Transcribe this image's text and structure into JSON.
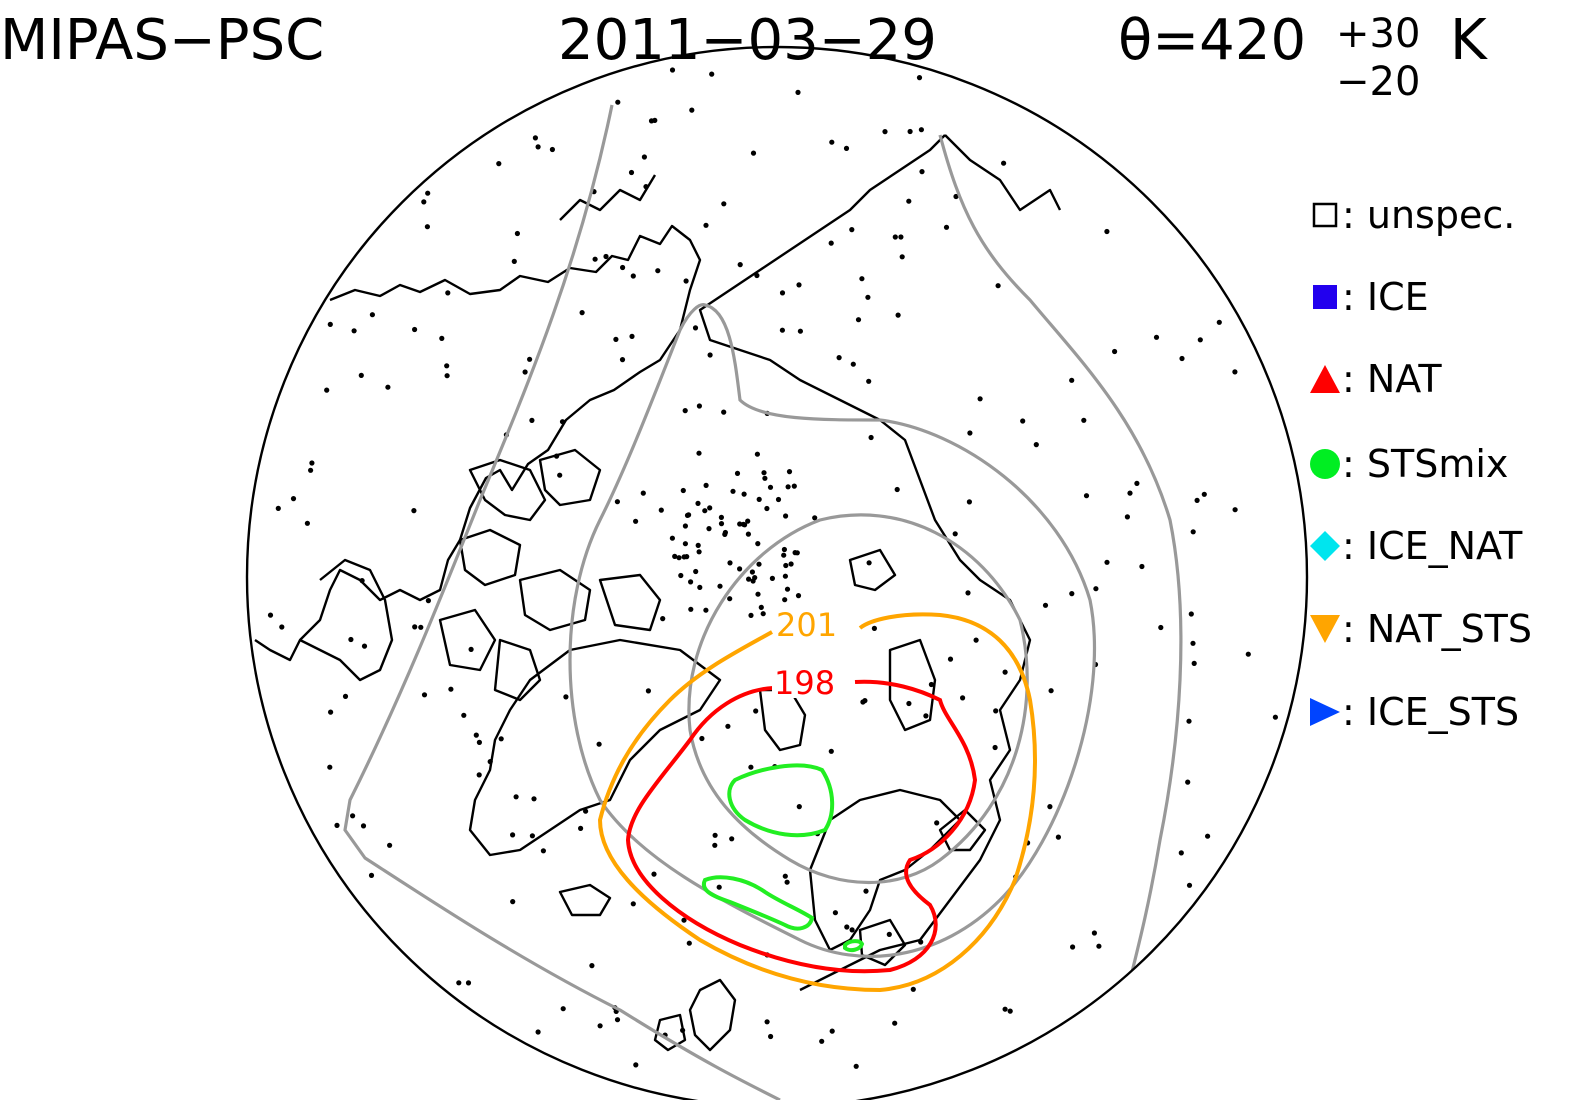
{
  "title": {
    "instrument": "MIPAS−PSC",
    "date": "2011−03−29",
    "theta_prefix": "θ=420",
    "theta_plus": "+30",
    "theta_minus": "−20",
    "theta_unit": "K"
  },
  "legend": [
    {
      "symbol": "open-square",
      "label": "□: unspec.",
      "text": ": unspec.",
      "color": "#000000"
    },
    {
      "symbol": "filled-square",
      "text": ": ICE",
      "color": "#2200ee"
    },
    {
      "symbol": "triangle-up",
      "text": ": NAT",
      "color": "#ff0000"
    },
    {
      "symbol": "circle",
      "text": ": STSmix",
      "color": "#00ee22"
    },
    {
      "symbol": "diamond",
      "text": ": ICE_NAT",
      "color": "#00e5ee"
    },
    {
      "symbol": "triangle-down",
      "text": ": NAT_STS",
      "color": "#ffa500"
    },
    {
      "symbol": "triangle-right",
      "text": ": ICE_STS",
      "color": "#0044ff"
    }
  ],
  "contour_labels": {
    "orange": "201",
    "red": "198"
  },
  "colors": {
    "gray_contours": "#999999",
    "orange_contour": "#ffa500",
    "red_contour": "#ff0000",
    "green_contours": "#22ee22",
    "coastlines": "#000000"
  }
}
